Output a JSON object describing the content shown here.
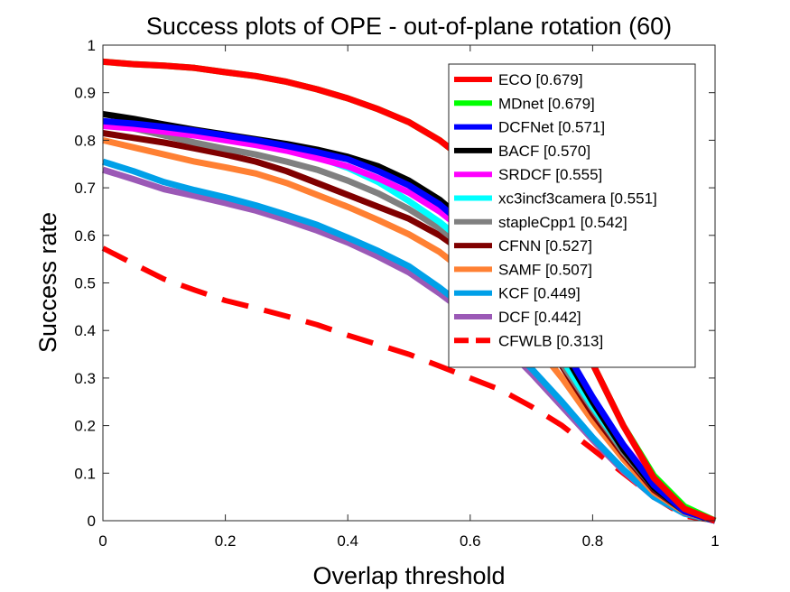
{
  "chart_data": {
    "type": "line",
    "title": "Success plots of OPE - out-of-plane rotation (60)",
    "xlabel": "Overlap threshold",
    "ylabel": "Success rate",
    "xlim": [
      0,
      1
    ],
    "ylim": [
      0,
      1
    ],
    "xticks": [
      "0",
      "0.2",
      "0.4",
      "0.6",
      "0.8",
      "1"
    ],
    "yticks": [
      "0",
      "0.1",
      "0.2",
      "0.3",
      "0.4",
      "0.5",
      "0.6",
      "0.7",
      "0.8",
      "0.9",
      "1"
    ],
    "grid": false,
    "legend_position": "top-right",
    "x": [
      0,
      0.05,
      0.1,
      0.15,
      0.2,
      0.25,
      0.3,
      0.35,
      0.4,
      0.45,
      0.5,
      0.55,
      0.6,
      0.65,
      0.7,
      0.75,
      0.8,
      0.85,
      0.9,
      0.95,
      1
    ],
    "series": [
      {
        "name": "ECO [0.679]",
        "color": "#ff0000",
        "dash": false,
        "values": [
          0.965,
          0.96,
          0.957,
          0.952,
          0.943,
          0.935,
          0.923,
          0.907,
          0.888,
          0.865,
          0.838,
          0.8,
          0.75,
          0.69,
          0.6,
          0.48,
          0.33,
          0.2,
          0.09,
          0.025,
          0.0
        ]
      },
      {
        "name": "MDnet [0.679]",
        "color": "#00ff00",
        "dash": false,
        "values": [
          0.965,
          0.96,
          0.957,
          0.952,
          0.943,
          0.935,
          0.923,
          0.907,
          0.888,
          0.865,
          0.838,
          0.8,
          0.75,
          0.69,
          0.6,
          0.48,
          0.33,
          0.2,
          0.095,
          0.03,
          0.0
        ]
      },
      {
        "name": "DCFNet [0.571]",
        "color": "#0000ff",
        "dash": false,
        "values": [
          0.84,
          0.835,
          0.828,
          0.82,
          0.81,
          0.8,
          0.788,
          0.775,
          0.76,
          0.735,
          0.705,
          0.665,
          0.61,
          0.55,
          0.47,
          0.37,
          0.26,
          0.16,
          0.075,
          0.02,
          0.0
        ]
      },
      {
        "name": "BACF [0.570]",
        "color": "#000000",
        "dash": false,
        "values": [
          0.855,
          0.845,
          0.833,
          0.822,
          0.812,
          0.802,
          0.792,
          0.78,
          0.765,
          0.745,
          0.715,
          0.675,
          0.62,
          0.55,
          0.46,
          0.36,
          0.25,
          0.15,
          0.07,
          0.02,
          0.0
        ]
      },
      {
        "name": "SRDCF [0.555]",
        "color": "#ff00ff",
        "dash": false,
        "values": [
          0.83,
          0.825,
          0.818,
          0.81,
          0.8,
          0.79,
          0.778,
          0.762,
          0.745,
          0.72,
          0.69,
          0.65,
          0.6,
          0.535,
          0.455,
          0.36,
          0.255,
          0.16,
          0.08,
          0.02,
          0.0
        ]
      },
      {
        "name": "xc3incf3camera [0.551]",
        "color": "#00ffff",
        "dash": false,
        "values": [
          0.835,
          0.83,
          0.825,
          0.82,
          0.812,
          0.8,
          0.785,
          0.765,
          0.742,
          0.712,
          0.672,
          0.628,
          0.575,
          0.51,
          0.43,
          0.34,
          0.24,
          0.15,
          0.07,
          0.02,
          0.0
        ]
      },
      {
        "name": "stapleCpp1 [0.542]",
        "color": "#808080",
        "dash": false,
        "values": [
          0.835,
          0.825,
          0.81,
          0.795,
          0.782,
          0.77,
          0.755,
          0.738,
          0.715,
          0.688,
          0.655,
          0.615,
          0.565,
          0.5,
          0.42,
          0.33,
          0.235,
          0.145,
          0.07,
          0.02,
          0.0
        ]
      },
      {
        "name": "CFNN [0.527]",
        "color": "#800000",
        "dash": false,
        "values": [
          0.815,
          0.805,
          0.795,
          0.783,
          0.77,
          0.755,
          0.735,
          0.71,
          0.685,
          0.66,
          0.635,
          0.6,
          0.555,
          0.495,
          0.415,
          0.325,
          0.225,
          0.14,
          0.065,
          0.02,
          0.0
        ]
      },
      {
        "name": "SAMF [0.507]",
        "color": "#ff8033",
        "dash": false,
        "values": [
          0.8,
          0.785,
          0.77,
          0.755,
          0.743,
          0.73,
          0.71,
          0.685,
          0.66,
          0.632,
          0.602,
          0.565,
          0.515,
          0.455,
          0.38,
          0.3,
          0.21,
          0.13,
          0.06,
          0.018,
          0.0
        ]
      },
      {
        "name": "KCF [0.449]",
        "color": "#00a0e8",
        "dash": false,
        "values": [
          0.755,
          0.735,
          0.712,
          0.695,
          0.68,
          0.663,
          0.643,
          0.622,
          0.595,
          0.567,
          0.535,
          0.49,
          0.44,
          0.385,
          0.32,
          0.25,
          0.175,
          0.108,
          0.05,
          0.015,
          0.0
        ]
      },
      {
        "name": "DCF [0.442]",
        "color": "#9b59b6",
        "dash": false,
        "values": [
          0.738,
          0.718,
          0.697,
          0.683,
          0.668,
          0.652,
          0.632,
          0.61,
          0.585,
          0.555,
          0.522,
          0.478,
          0.43,
          0.375,
          0.31,
          0.24,
          0.17,
          0.105,
          0.05,
          0.015,
          0.0
        ]
      },
      {
        "name": "CFWLB [0.313]",
        "color": "#ff0000",
        "dash": true,
        "values": [
          0.573,
          0.54,
          0.508,
          0.485,
          0.463,
          0.447,
          0.43,
          0.412,
          0.39,
          0.37,
          0.35,
          0.325,
          0.3,
          0.275,
          0.24,
          0.2,
          0.15,
          0.1,
          0.05,
          0.01,
          0.0
        ]
      }
    ]
  }
}
